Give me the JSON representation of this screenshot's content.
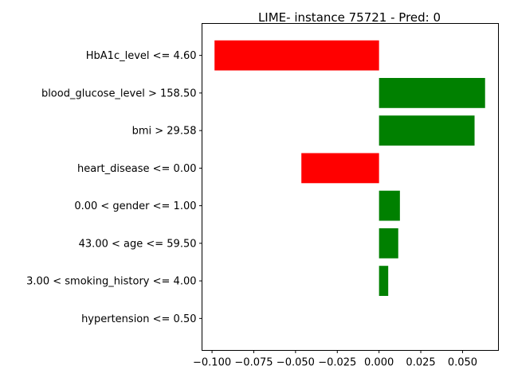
{
  "chart_data": {
    "type": "bar",
    "orientation": "horizontal",
    "title": "LIME- instance 75721 - Pred: 0",
    "xlabel": "",
    "ylabel": "",
    "categories": [
      "HbA1c_level <= 4.60",
      "blood_glucose_level > 158.50",
      "bmi > 29.58",
      "heart_disease <= 0.00",
      "0.00 < gender <= 1.00",
      "43.00 < age <= 59.50",
      "3.00 < smoking_history <= 4.00",
      "hypertension <= 0.50"
    ],
    "values": [
      -0.0985,
      0.0635,
      0.0572,
      -0.0465,
      0.0125,
      0.0115,
      0.0055,
      0.0
    ],
    "xlim": [
      -0.106,
      0.0715
    ],
    "xticks": [
      -0.1,
      -0.075,
      -0.05,
      -0.025,
      0.0,
      0.025,
      0.05
    ],
    "xtick_labels": [
      "−0.100",
      "−0.075",
      "−0.050",
      "−0.025",
      "0.000",
      "0.025",
      "0.050"
    ],
    "colors": {
      "positive": "#008000",
      "negative": "#ff0000"
    },
    "grid": false,
    "legend": "none"
  }
}
